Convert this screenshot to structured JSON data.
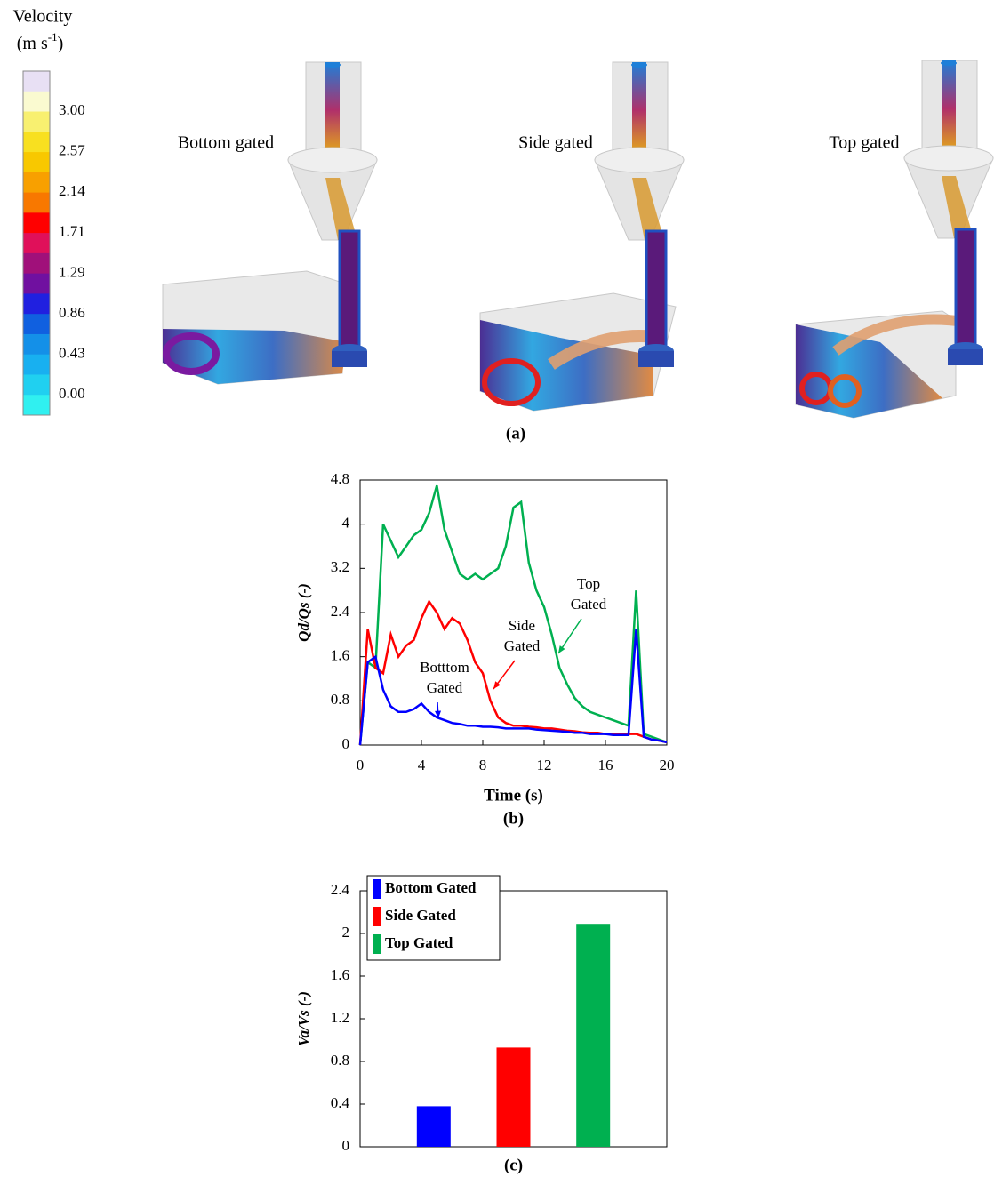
{
  "figure_a": {
    "colorbar_title": "Velocity",
    "colorbar_unit": [
      "(m s",
      "-1",
      ")"
    ],
    "colorbar_labels": [
      "3.00",
      "2.57",
      "2.14",
      "1.71",
      "1.29",
      "0.86",
      "0.43",
      "0.00"
    ],
    "labels": [
      "Bottom gated",
      "Side gated",
      "Top gated"
    ],
    "caption": "(a)"
  },
  "chart_data": [
    {
      "type": "line",
      "ylabel": "Qd/Qs (-)",
      "xlabel": "Time (s)",
      "caption": "(b)",
      "xlim": [
        0,
        20
      ],
      "xticks": [
        0,
        4,
        8,
        12,
        16,
        20
      ],
      "ylim": [
        0,
        4.8
      ],
      "yticks": [
        0,
        0.8,
        1.6,
        2.4,
        3.2,
        4,
        4.8
      ],
      "x": [
        0,
        0.5,
        1,
        1.5,
        2,
        2.5,
        3,
        3.5,
        4,
        4.5,
        5,
        5.5,
        6,
        6.5,
        7,
        7.5,
        8,
        8.5,
        9,
        9.5,
        10,
        10.5,
        11,
        11.5,
        12,
        12.5,
        13,
        13.5,
        14,
        14.5,
        15,
        15.5,
        16,
        16.5,
        17,
        17.5,
        18,
        18.5,
        19,
        19.5,
        20
      ],
      "series": [
        {
          "color": "#00b050",
          "values": [
            0,
            1.5,
            1.4,
            4.0,
            3.7,
            3.4,
            3.6,
            3.8,
            3.9,
            4.2,
            4.7,
            3.9,
            3.5,
            3.1,
            3.0,
            3.1,
            3.0,
            3.1,
            3.2,
            3.6,
            4.3,
            4.4,
            3.3,
            2.8,
            2.5,
            2.0,
            1.4,
            1.1,
            0.85,
            0.7,
            0.6,
            0.55,
            0.5,
            0.45,
            0.4,
            0.35,
            2.8,
            0.2,
            0.15,
            0.1,
            0.05
          ]
        },
        {
          "color": "#ff0000",
          "values": [
            0,
            2.1,
            1.4,
            1.3,
            2.0,
            1.6,
            1.8,
            1.9,
            2.3,
            2.6,
            2.4,
            2.1,
            2.3,
            2.2,
            1.9,
            1.5,
            1.3,
            0.8,
            0.5,
            0.4,
            0.35,
            0.35,
            0.33,
            0.32,
            0.3,
            0.3,
            0.28,
            0.26,
            0.25,
            0.23,
            0.22,
            0.22,
            0.2,
            0.2,
            0.2,
            0.2,
            0.2,
            0.15,
            0.1,
            0.08,
            0.05
          ]
        },
        {
          "color": "#0000ff",
          "values": [
            0,
            1.5,
            1.6,
            1.0,
            0.7,
            0.6,
            0.6,
            0.65,
            0.75,
            0.6,
            0.5,
            0.45,
            0.4,
            0.38,
            0.35,
            0.35,
            0.33,
            0.33,
            0.32,
            0.3,
            0.3,
            0.3,
            0.3,
            0.28,
            0.27,
            0.26,
            0.25,
            0.24,
            0.22,
            0.22,
            0.2,
            0.2,
            0.2,
            0.18,
            0.18,
            0.18,
            2.1,
            0.15,
            0.1,
            0.08,
            0.05
          ]
        }
      ],
      "annotations": [
        {
          "text": [
            "Botttom",
            "Gated"
          ],
          "color": "#0000ff"
        },
        {
          "text": [
            "Side",
            "Gated"
          ],
          "color": "#ff0000"
        },
        {
          "text": [
            "Top",
            "Gated"
          ],
          "color": "#00b050"
        }
      ]
    },
    {
      "type": "bar",
      "ylabel": "Va/Vs (-)",
      "caption": "(c)",
      "categories": [
        null
      ],
      "ylim": [
        0,
        2.4
      ],
      "yticks": [
        0,
        0.4,
        0.8,
        1.2,
        1.6,
        2,
        2.4
      ],
      "legend": "upper left",
      "series": [
        {
          "name": "Bottom Gated",
          "color": "#0000ff",
          "values": [
            0.38
          ]
        },
        {
          "name": "Side Gated",
          "color": "#ff0000",
          "values": [
            0.93
          ]
        },
        {
          "name": "Top Gated",
          "color": "#00b050",
          "values": [
            2.09
          ]
        }
      ]
    }
  ]
}
